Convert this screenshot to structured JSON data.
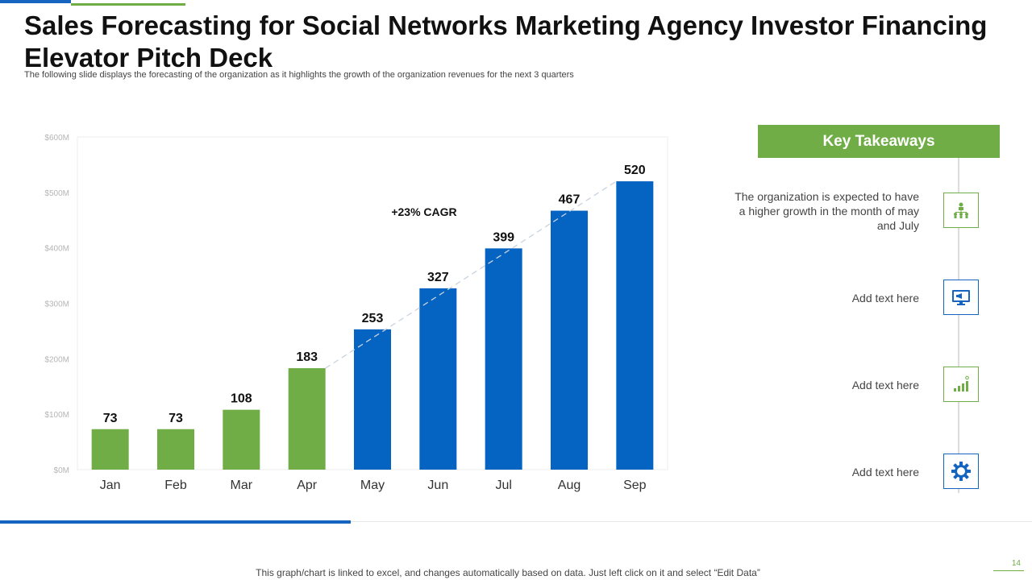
{
  "title": "Sales Forecasting for Social Networks Marketing Agency Investor Financing Elevator Pitch Deck",
  "subtitle": "The following slide displays the forecasting of the organization as it highlights the growth of the organization revenues for the next 3 quarters",
  "chart_data": {
    "type": "bar",
    "categories": [
      "Jan",
      "Feb",
      "Mar",
      "Apr",
      "May",
      "Jun",
      "Jul",
      "Aug",
      "Sep"
    ],
    "values": [
      73,
      73,
      108,
      183,
      253,
      327,
      399,
      467,
      520
    ],
    "value_labels": [
      "73",
      "73",
      "108",
      "183",
      "253",
      "327",
      "399",
      "467",
      "520"
    ],
    "bar_colors": [
      "#70ad47",
      "#70ad47",
      "#70ad47",
      "#70ad47",
      "#0563c1",
      "#0563c1",
      "#0563c1",
      "#0563c1",
      "#0563c1"
    ],
    "y_ticks": [
      "$0M",
      "$100M",
      "$200M",
      "$300M",
      "$400M",
      "$500M",
      "$600M"
    ],
    "y_tick_values": [
      0,
      100,
      200,
      300,
      400,
      500,
      600
    ],
    "ylim": [
      0,
      600
    ],
    "annotation": "+23% CAGR",
    "trend_from": "Apr",
    "trend_to": "Sep"
  },
  "takeaways": {
    "header": "Key Takeaways",
    "items": [
      {
        "text": "The organization is expected to have a higher growth in the month of may and July",
        "icon": "org-chart-icon"
      },
      {
        "text": "Add text here",
        "icon": "monitor-megaphone-icon"
      },
      {
        "text": "Add text here",
        "icon": "bar-growth-icon"
      },
      {
        "text": "Add text here",
        "icon": "gear-icon"
      }
    ]
  },
  "footer_note": "This graph/chart is linked to excel, and changes automatically based on data. Just left click on it and select “Edit Data”",
  "page_number": "14",
  "colors": {
    "green": "#70ad47",
    "blue": "#0563c1"
  }
}
